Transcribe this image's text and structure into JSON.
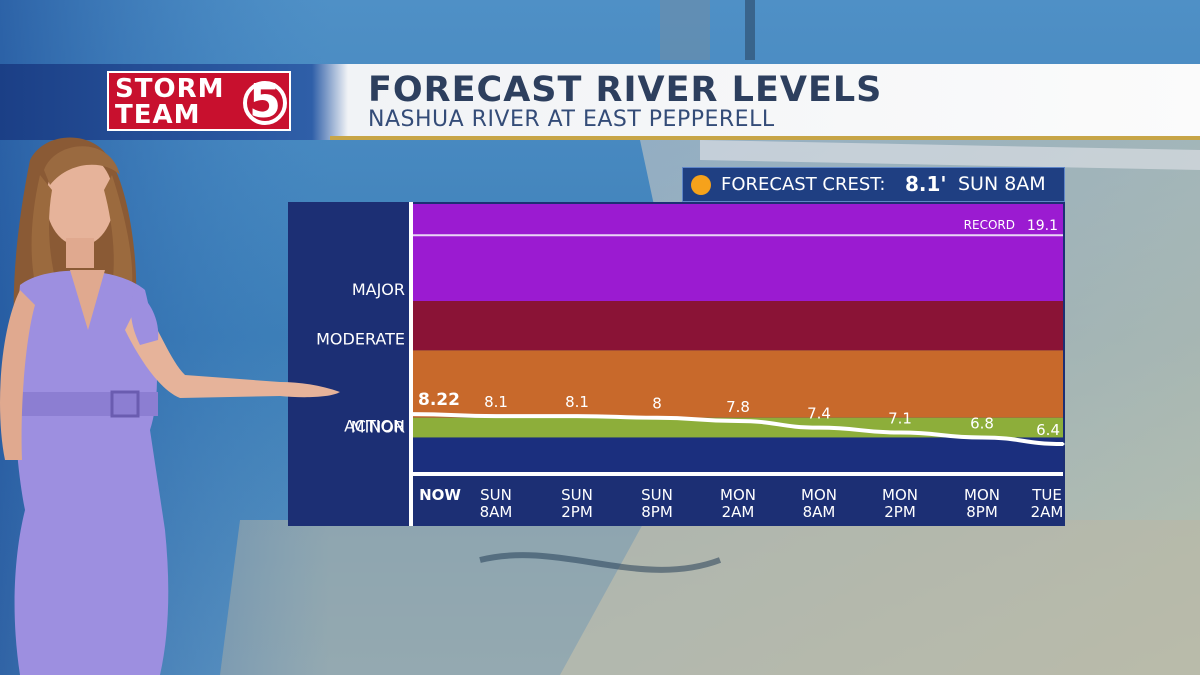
{
  "brand": {
    "line1": "STORM",
    "line2": "TEAM",
    "number": "5"
  },
  "header": {
    "title": "FORECAST RIVER LEVELS",
    "subtitle": "NASHUA RIVER AT EAST PEPPERELL"
  },
  "crest": {
    "label": "FORECAST CREST:",
    "value": "8.1'",
    "time": "SUN 8AM"
  },
  "colors": {
    "major": "#9b1bd1",
    "moderate": "#8a1336",
    "minor": "#c8692b",
    "action": "#8dae3a",
    "below": "#1b2f7e",
    "crest_dot": "#f6a21b",
    "header_gold": "#c7a547"
  },
  "chart_data": {
    "type": "line",
    "title": "FORECAST RIVER LEVELS",
    "subtitle": "NASHUA RIVER AT EAST PEPPERELL",
    "categories": [
      "NOW",
      "SUN 8AM",
      "SUN 2PM",
      "SUN 8PM",
      "MON 2AM",
      "MON 8AM",
      "MON 2PM",
      "MON 8PM",
      "TUE 2AM"
    ],
    "x_labels": [
      [
        "NOW"
      ],
      [
        "SUN",
        "8AM"
      ],
      [
        "SUN",
        "2PM"
      ],
      [
        "SUN",
        "8PM"
      ],
      [
        "MON",
        "2AM"
      ],
      [
        "MON",
        "8AM"
      ],
      [
        "MON",
        "2PM"
      ],
      [
        "MON",
        "8PM"
      ],
      [
        "TUE",
        "2AM"
      ]
    ],
    "values": [
      8.22,
      8.1,
      8.1,
      8,
      7.8,
      7.4,
      7.1,
      6.8,
      6.4
    ],
    "value_labels": [
      "8.22",
      "8.1",
      "8.1",
      "8",
      "7.8",
      "7.4",
      "7.1",
      "6.8",
      "6.4"
    ],
    "stages": [
      {
        "name": "MAJOR",
        "from": 15.1,
        "to": 21.0,
        "color": "#9b1bd1"
      },
      {
        "name": "MODERATE",
        "from": 12.1,
        "to": 15.1,
        "color": "#8a1336"
      },
      {
        "name": "MINOR",
        "from": 8.0,
        "to": 12.1,
        "color": "#c8692b"
      },
      {
        "name": "ACTION",
        "from": 6.8,
        "to": 8.0,
        "color": "#8dae3a"
      },
      {
        "name": "",
        "from": 4.7,
        "to": 6.8,
        "color": "#1b2f7e"
      }
    ],
    "stage_labels": [
      "MAJOR",
      "MODERATE",
      "MINOR",
      "ACTION"
    ],
    "record": {
      "label": "RECORD",
      "value": 19.1,
      "value_label": "19.1"
    },
    "ylim": [
      4.7,
      21.0
    ],
    "grid": false,
    "legend": "none"
  }
}
